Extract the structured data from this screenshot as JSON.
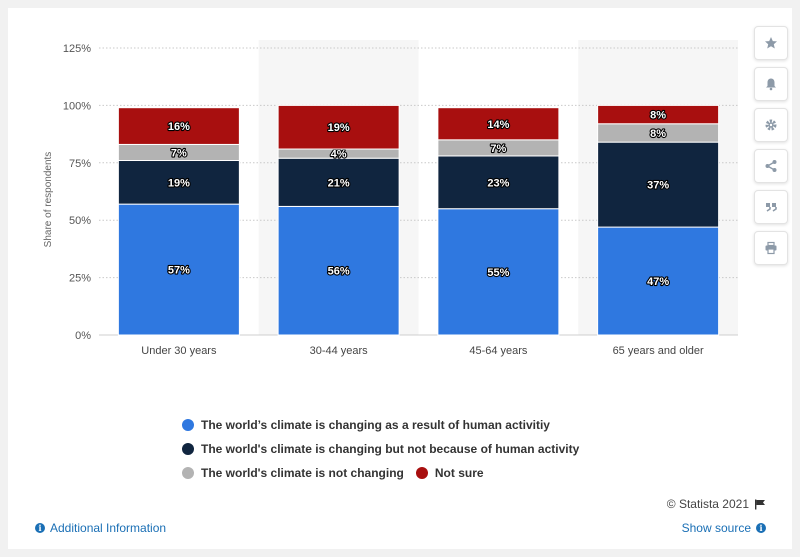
{
  "chart_data": {
    "type": "bar",
    "stacked": true,
    "categories": [
      "Under 30 years",
      "30-44 years",
      "45-64 years",
      "65 years and older"
    ],
    "series": [
      {
        "name": "The world’s climate is changing as a result of human activitiy",
        "color": "#2f78e0",
        "values": [
          57,
          56,
          55,
          47
        ],
        "labels": [
          "57%",
          "56%",
          "55%",
          "47%"
        ]
      },
      {
        "name": "The world's climate is changing but not because of human activity",
        "color": "#10253f",
        "values": [
          19,
          21,
          23,
          37
        ],
        "labels": [
          "19%",
          "21%",
          "23%",
          "37%"
        ]
      },
      {
        "name": "The world's climate is not changing",
        "color": "#b3b3b3",
        "values": [
          7,
          4,
          7,
          8
        ],
        "labels": [
          "7%",
          "4%",
          "7%",
          "8%"
        ]
      },
      {
        "name": "Not sure",
        "color": "#a80f0f",
        "values": [
          16,
          19,
          14,
          8
        ],
        "labels": [
          "16%",
          "19%",
          "14%",
          "8%"
        ]
      }
    ],
    "ylabel": "Share of respondents",
    "ylim": [
      0,
      125
    ],
    "yticks": [
      0,
      25,
      50,
      75,
      100,
      125
    ],
    "ytick_labels": [
      "0%",
      "25%",
      "50%",
      "75%",
      "100%",
      "125%"
    ],
    "grid": true,
    "legend_position": "bottom"
  },
  "footer": {
    "credit": "© Statista 2021",
    "additional_info": "Additional Information",
    "show_source": "Show source"
  },
  "toolbar": {
    "icons": [
      "star-icon",
      "bell-icon",
      "gear-icon",
      "share-icon",
      "quote-icon",
      "print-icon"
    ]
  }
}
